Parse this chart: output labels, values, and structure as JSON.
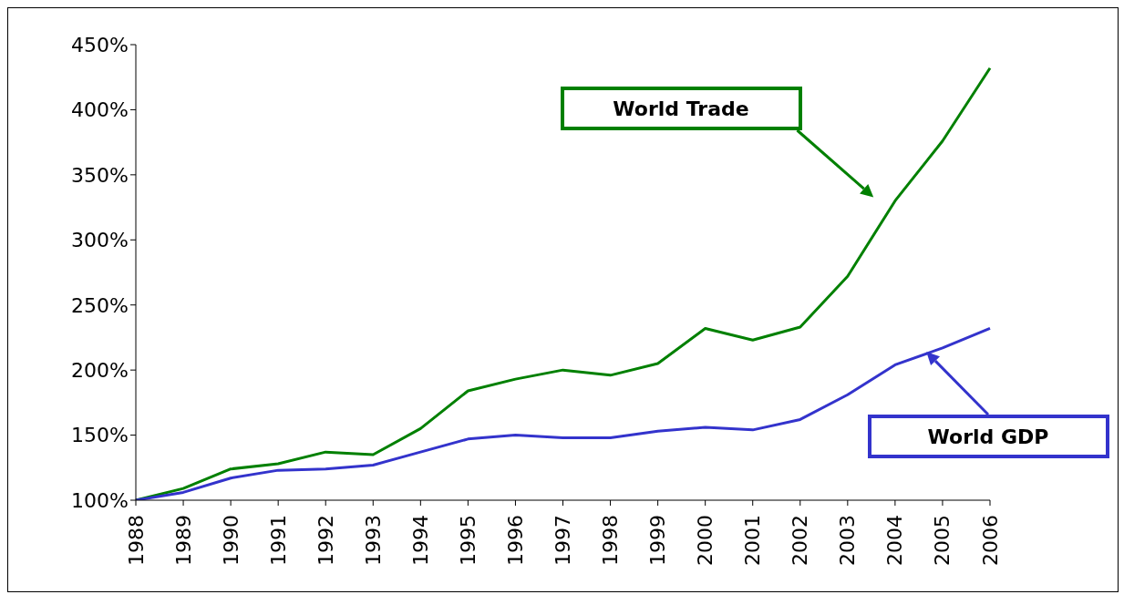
{
  "chart_data": {
    "type": "line",
    "categories": [
      "1988",
      "1989",
      "1990",
      "1991",
      "1992",
      "1993",
      "1994",
      "1995",
      "1996",
      "1997",
      "1998",
      "1999",
      "2000",
      "2001",
      "2002",
      "2003",
      "2004",
      "2005",
      "2006"
    ],
    "series": [
      {
        "name": "World Trade",
        "color": "#008000",
        "values": [
          100,
          109,
          124,
          128,
          137,
          135,
          155,
          184,
          193,
          200,
          196,
          205,
          232,
          223,
          233,
          272,
          330,
          376,
          432
        ]
      },
      {
        "name": "World GDP",
        "color": "#3333cc",
        "values": [
          100,
          106,
          117,
          123,
          124,
          127,
          137,
          147,
          150,
          148,
          148,
          153,
          156,
          154,
          162,
          181,
          204,
          217,
          232
        ]
      }
    ],
    "ylim": [
      100,
      450
    ],
    "yticks": [
      {
        "value": 100,
        "label": "100%"
      },
      {
        "value": 150,
        "label": "150%"
      },
      {
        "value": 200,
        "label": "200%"
      },
      {
        "value": 250,
        "label": "250%"
      },
      {
        "value": 300,
        "label": "300%"
      },
      {
        "value": 350,
        "label": "350%"
      },
      {
        "value": 400,
        "label": "400%"
      },
      {
        "value": 450,
        "label": "450%"
      }
    ],
    "grid": false,
    "marker": "none",
    "line_style": "solid"
  }
}
